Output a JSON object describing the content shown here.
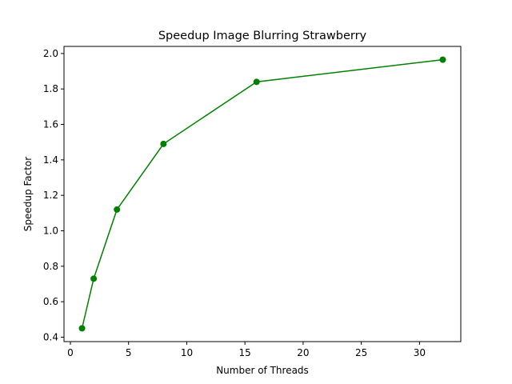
{
  "chart_data": {
    "type": "line",
    "title": "Speedup Image Blurring Strawberry",
    "xlabel": "Number of Threads",
    "ylabel": "Speedup Factor",
    "xlim": [
      -0.55,
      33.55
    ],
    "ylim": [
      0.375,
      2.04
    ],
    "xticks": [
      0,
      5,
      10,
      15,
      20,
      25,
      30
    ],
    "yticks": [
      0.4,
      0.6,
      0.8,
      1.0,
      1.2,
      1.4,
      1.6,
      1.8,
      2.0
    ],
    "grid": false,
    "legend": "none",
    "series": [
      {
        "color": "#008000",
        "marker": "circle",
        "x": [
          1,
          2,
          4,
          8,
          16,
          32
        ],
        "y": [
          0.45,
          0.73,
          1.12,
          1.49,
          1.84,
          1.965
        ]
      }
    ]
  }
}
